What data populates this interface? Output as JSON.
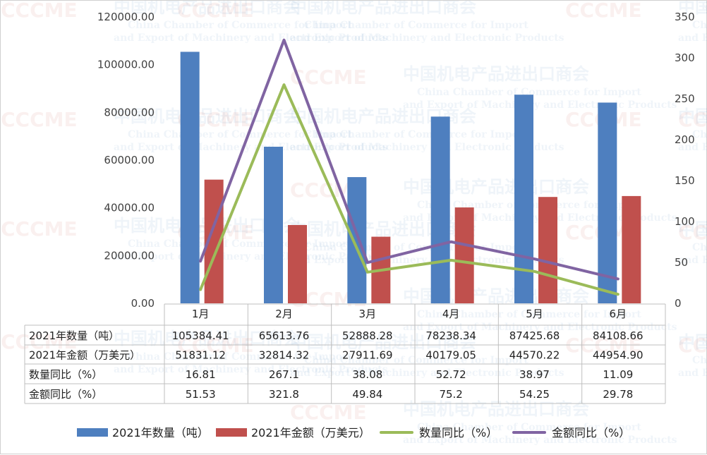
{
  "chart_data": {
    "type": "bar",
    "categories": [
      "1月",
      "2月",
      "3月",
      "4月",
      "5月",
      "6月"
    ],
    "y_left": {
      "min": 0,
      "max": 120000,
      "step": 20000,
      "tick_labels": [
        "0.00",
        "20000.00",
        "40000.00",
        "60000.00",
        "80000.00",
        "100000.00",
        "120000.00"
      ]
    },
    "y_right": {
      "min": 0,
      "max": 350,
      "step": 50,
      "tick_labels": [
        "0",
        "50",
        "100",
        "150",
        "200",
        "250",
        "300",
        "350"
      ]
    },
    "series": [
      {
        "name": "2021年数量（吨）",
        "type": "bar",
        "axis": "left",
        "color": "#4e7fbf",
        "values": [
          105384.41,
          65613.76,
          52888.28,
          78238.34,
          87425.68,
          84108.66
        ],
        "labels": [
          "105384.41",
          "65613.76",
          "52888.28",
          "78238.34",
          "87425.68",
          "84108.66"
        ]
      },
      {
        "name": "2021年金额（万美元）",
        "type": "bar",
        "axis": "left",
        "color": "#c0504d",
        "values": [
          51831.12,
          32814.32,
          27911.69,
          40179.05,
          44570.22,
          44954.9
        ],
        "labels": [
          "51831.12",
          "32814.32",
          "27911.69",
          "40179.05",
          "44570.22",
          "44954.90"
        ]
      },
      {
        "name": "数量同比（%）",
        "type": "line",
        "axis": "right",
        "color": "#9bbb59",
        "values": [
          16.81,
          267.1,
          38.08,
          52.72,
          38.97,
          11.09
        ],
        "labels": [
          "16.81",
          "267.1",
          "38.08",
          "52.72",
          "38.97",
          "11.09"
        ]
      },
      {
        "name": "金额同比（%）",
        "type": "line",
        "axis": "right",
        "color": "#8064a2",
        "values": [
          51.53,
          321.8,
          49.84,
          75.2,
          54.25,
          29.78
        ],
        "labels": [
          "51.53",
          "321.8",
          "49.84",
          "75.2",
          "54.25",
          "29.78"
        ]
      }
    ],
    "gridlines": false,
    "data_table": true,
    "legend_position": "bottom",
    "watermark": {
      "logo": "CCCME",
      "name_cn": "中国机电产品进出口商会",
      "name_en_1": "China Chamber of Commerce for Import",
      "name_en_2": "and Export of Machinery and Electronic Products"
    }
  }
}
